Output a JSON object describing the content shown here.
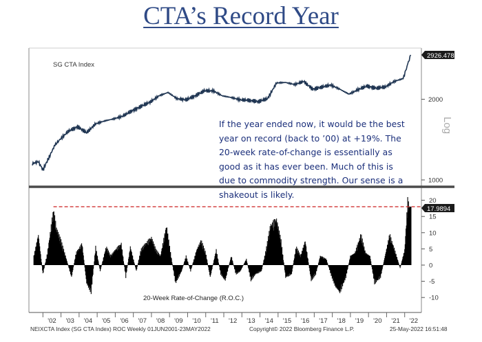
{
  "title": "CTA’s Record Year",
  "colors": {
    "line": "#1f3552",
    "bars": "#000000",
    "reference": "#cc1f1f",
    "title": "#2f4a86",
    "annotation": "#1a2e7a"
  },
  "chart_data": [
    {
      "type": "line",
      "series": [
        {
          "name": "SG CTA Index"
        }
      ],
      "scale": "log",
      "y_ticks": [
        "1000",
        "2000"
      ],
      "ylabel": "Log",
      "last_value": "2926.478",
      "x_range": [
        "2001-06-01",
        "2022-05-23"
      ],
      "points": [
        {
          "x": "2001-06",
          "y": 1150
        },
        {
          "x": "2001-10",
          "y": 1170
        },
        {
          "x": "2002-01",
          "y": 1090
        },
        {
          "x": "2002-09",
          "y": 1350
        },
        {
          "x": "2002-12",
          "y": 1410
        },
        {
          "x": "2003-06",
          "y": 1520
        },
        {
          "x": "2003-12",
          "y": 1580
        },
        {
          "x": "2004-06",
          "y": 1500
        },
        {
          "x": "2004-12",
          "y": 1620
        },
        {
          "x": "2005-06",
          "y": 1660
        },
        {
          "x": "2005-12",
          "y": 1690
        },
        {
          "x": "2006-06",
          "y": 1730
        },
        {
          "x": "2006-12",
          "y": 1810
        },
        {
          "x": "2007-06",
          "y": 1880
        },
        {
          "x": "2007-12",
          "y": 1950
        },
        {
          "x": "2008-06",
          "y": 2060
        },
        {
          "x": "2008-12",
          "y": 2120
        },
        {
          "x": "2009-06",
          "y": 2010
        },
        {
          "x": "2009-12",
          "y": 1990
        },
        {
          "x": "2010-06",
          "y": 2060
        },
        {
          "x": "2010-12",
          "y": 2150
        },
        {
          "x": "2011-06",
          "y": 2150
        },
        {
          "x": "2011-12",
          "y": 2060
        },
        {
          "x": "2012-06",
          "y": 2030
        },
        {
          "x": "2012-12",
          "y": 1990
        },
        {
          "x": "2013-06",
          "y": 1980
        },
        {
          "x": "2013-12",
          "y": 1960
        },
        {
          "x": "2014-06",
          "y": 2010
        },
        {
          "x": "2014-12",
          "y": 2300
        },
        {
          "x": "2015-06",
          "y": 2310
        },
        {
          "x": "2015-12",
          "y": 2270
        },
        {
          "x": "2016-06",
          "y": 2330
        },
        {
          "x": "2016-12",
          "y": 2180
        },
        {
          "x": "2017-06",
          "y": 2220
        },
        {
          "x": "2017-12",
          "y": 2260
        },
        {
          "x": "2018-06",
          "y": 2180
        },
        {
          "x": "2018-12",
          "y": 2090
        },
        {
          "x": "2019-06",
          "y": 2170
        },
        {
          "x": "2019-12",
          "y": 2240
        },
        {
          "x": "2020-06",
          "y": 2200
        },
        {
          "x": "2020-12",
          "y": 2220
        },
        {
          "x": "2021-06",
          "y": 2330
        },
        {
          "x": "2021-12",
          "y": 2390
        },
        {
          "x": "2022-03",
          "y": 2700
        },
        {
          "x": "2022-05",
          "y": 2926
        }
      ]
    },
    {
      "type": "bar",
      "series": [
        {
          "name": "20-Week Rate-of-Change (R.O.C.)"
        }
      ],
      "y_ticks": [
        "20",
        "15",
        "10",
        "5",
        "0",
        "-5",
        "-10"
      ],
      "ylim": [
        -13,
        22
      ],
      "last_value": "17.9894",
      "reference_line": 18,
      "bars": [
        {
          "x": "2001-07",
          "y": 3
        },
        {
          "x": "2001-10",
          "y": 10
        },
        {
          "x": "2002-01",
          "y": -3
        },
        {
          "x": "2002-04",
          "y": 4
        },
        {
          "x": "2002-08",
          "y": 18
        },
        {
          "x": "2002-10",
          "y": 12
        },
        {
          "x": "2003-01",
          "y": 8
        },
        {
          "x": "2003-04",
          "y": 3
        },
        {
          "x": "2003-08",
          "y": -4
        },
        {
          "x": "2003-11",
          "y": 4
        },
        {
          "x": "2004-03",
          "y": 7
        },
        {
          "x": "2004-06",
          "y": -6
        },
        {
          "x": "2004-09",
          "y": -9
        },
        {
          "x": "2004-12",
          "y": 6
        },
        {
          "x": "2005-03",
          "y": -2
        },
        {
          "x": "2005-07",
          "y": 6
        },
        {
          "x": "2005-10",
          "y": 3
        },
        {
          "x": "2006-01",
          "y": 5
        },
        {
          "x": "2006-05",
          "y": 7
        },
        {
          "x": "2006-08",
          "y": -4
        },
        {
          "x": "2006-11",
          "y": 6
        },
        {
          "x": "2007-03",
          "y": -2
        },
        {
          "x": "2007-06",
          "y": 5
        },
        {
          "x": "2007-09",
          "y": 7
        },
        {
          "x": "2008-01",
          "y": 9
        },
        {
          "x": "2008-04",
          "y": 5
        },
        {
          "x": "2008-07",
          "y": 3
        },
        {
          "x": "2008-11",
          "y": 13
        },
        {
          "x": "2009-02",
          "y": 3
        },
        {
          "x": "2009-05",
          "y": -6
        },
        {
          "x": "2009-09",
          "y": -2
        },
        {
          "x": "2009-12",
          "y": 3
        },
        {
          "x": "2010-03",
          "y": -2
        },
        {
          "x": "2010-07",
          "y": 5
        },
        {
          "x": "2010-10",
          "y": 8
        },
        {
          "x": "2011-01",
          "y": 4
        },
        {
          "x": "2011-04",
          "y": -4
        },
        {
          "x": "2011-08",
          "y": 5
        },
        {
          "x": "2011-11",
          "y": -3
        },
        {
          "x": "2012-02",
          "y": -5
        },
        {
          "x": "2012-06",
          "y": 3
        },
        {
          "x": "2012-09",
          "y": -3
        },
        {
          "x": "2012-12",
          "y": -2
        },
        {
          "x": "2013-04",
          "y": 2
        },
        {
          "x": "2013-07",
          "y": -5
        },
        {
          "x": "2013-10",
          "y": -3
        },
        {
          "x": "2014-02",
          "y": -2
        },
        {
          "x": "2014-05",
          "y": 5
        },
        {
          "x": "2014-08",
          "y": 13
        },
        {
          "x": "2014-12",
          "y": 15
        },
        {
          "x": "2015-03",
          "y": 8
        },
        {
          "x": "2015-06",
          "y": -4
        },
        {
          "x": "2015-10",
          "y": -3
        },
        {
          "x": "2016-01",
          "y": 6
        },
        {
          "x": "2016-04",
          "y": 3
        },
        {
          "x": "2016-07",
          "y": 8
        },
        {
          "x": "2016-11",
          "y": -5
        },
        {
          "x": "2017-02",
          "y": -3
        },
        {
          "x": "2017-05",
          "y": 3
        },
        {
          "x": "2017-09",
          "y": 2
        },
        {
          "x": "2017-12",
          "y": -3
        },
        {
          "x": "2018-03",
          "y": -7
        },
        {
          "x": "2018-06",
          "y": -9
        },
        {
          "x": "2018-10",
          "y": -4
        },
        {
          "x": "2019-01",
          "y": 3
        },
        {
          "x": "2019-04",
          "y": 4
        },
        {
          "x": "2019-08",
          "y": 10
        },
        {
          "x": "2019-11",
          "y": 4
        },
        {
          "x": "2020-02",
          "y": 3
        },
        {
          "x": "2020-05",
          "y": -6
        },
        {
          "x": "2020-09",
          "y": -4
        },
        {
          "x": "2020-12",
          "y": 3
        },
        {
          "x": "2021-03",
          "y": 10
        },
        {
          "x": "2021-07",
          "y": 4
        },
        {
          "x": "2021-10",
          "y": -1
        },
        {
          "x": "2022-01",
          "y": 5
        },
        {
          "x": "2022-03",
          "y": 21
        },
        {
          "x": "2022-05",
          "y": 18
        }
      ]
    }
  ],
  "x_ticks": [
    "'02",
    "'03",
    "'04",
    "'05",
    "'06",
    "'07",
    "'08",
    "'09",
    "'10",
    "'11",
    "'12",
    "'13",
    "'14",
    "'15",
    "'16",
    "'17",
    "'18",
    "'19",
    "'20",
    "'21",
    "'22"
  ],
  "labels": {
    "index_label": "SG CTA Index",
    "roc_label": "20-Week Rate-of-Change (R.O.C.)",
    "axis_scale": "Log"
  },
  "annotation": "If the year ended now, it would be the best year on record (back to ’00) at +19%. The 20-week rate-of-change is essentially as good as it has ever been. Much of this is due to commodity strength. Our sense is a shakeout is likely.",
  "footer": {
    "left": "NEIXCTA Index (SG CTA Index) ROC  Weekly 01JUN2001-23MAY2022",
    "center": "Copyright© 2022 Bloomberg Finance L.P.",
    "right": "25-May-2022 16:51:48"
  }
}
